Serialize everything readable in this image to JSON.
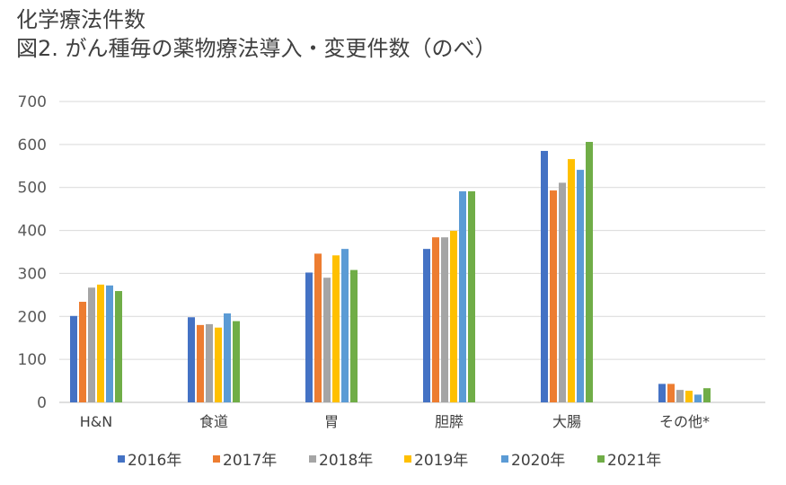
{
  "heading": {
    "line1": "化学療法件数",
    "line2": "図2.  がん種毎の薬物療法導入・変更件数（のべ）"
  },
  "chart_data": {
    "type": "bar",
    "categories": [
      "H&N",
      "食道",
      "胃",
      "胆膵",
      "大腸",
      "その他*"
    ],
    "series": [
      {
        "name": "2016年",
        "color": "#4472C4",
        "values": [
          201,
          198,
          302,
          357,
          585,
          43
        ]
      },
      {
        "name": "2017年",
        "color": "#ED7D31",
        "values": [
          234,
          180,
          346,
          384,
          493,
          43
        ]
      },
      {
        "name": "2018年",
        "color": "#A5A5A5",
        "values": [
          267,
          182,
          290,
          384,
          511,
          29
        ]
      },
      {
        "name": "2019年",
        "color": "#FFC000",
        "values": [
          274,
          174,
          342,
          399,
          566,
          27
        ]
      },
      {
        "name": "2020年",
        "color": "#5B9BD5",
        "values": [
          272,
          207,
          357,
          491,
          541,
          18
        ]
      },
      {
        "name": "2021年",
        "color": "#70AD47",
        "values": [
          259,
          189,
          308,
          491,
          606,
          33
        ]
      }
    ],
    "yticks": [
      0,
      100,
      200,
      300,
      400,
      500,
      600,
      700
    ],
    "ylim": [
      0,
      700
    ],
    "grid": true,
    "legend": "bottom"
  }
}
